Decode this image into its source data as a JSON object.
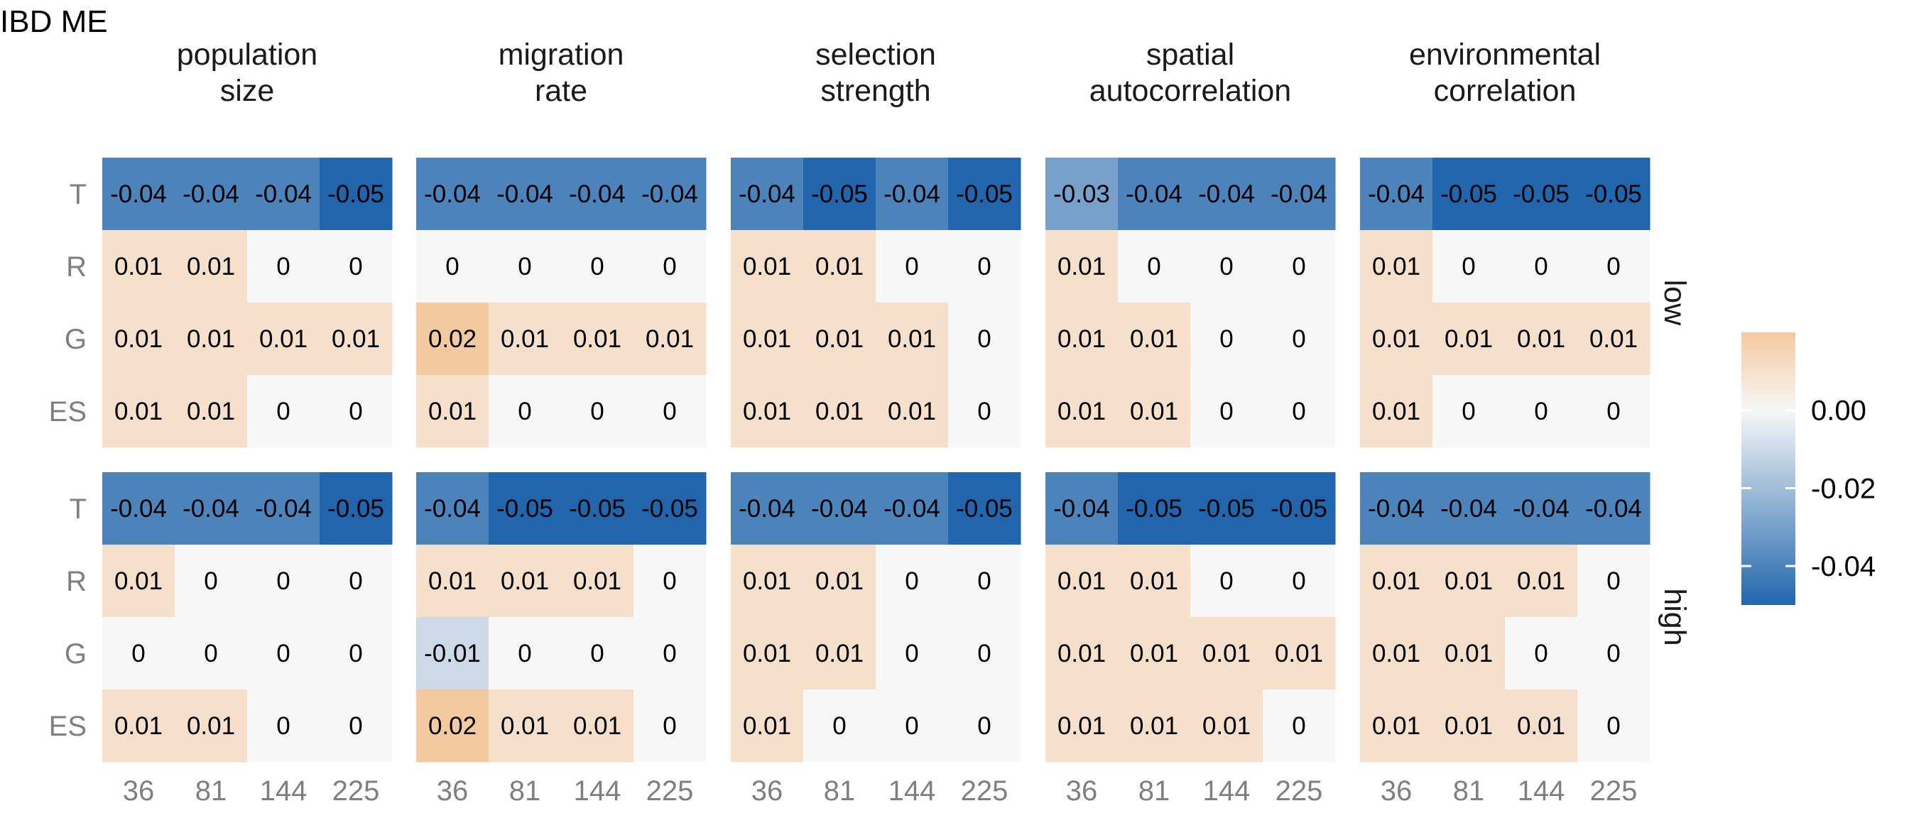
{
  "chart_data": {
    "type": "heatmap",
    "title": "IBD ME",
    "x_ticks": [
      "36",
      "81",
      "144",
      "225"
    ],
    "y_categories": [
      "T",
      "R",
      "G",
      "ES"
    ],
    "columns": [
      "population\nsize",
      "migration\nrate",
      "selection\nstrength",
      "spatial\nautocorrelation",
      "environmental\ncorrelation"
    ],
    "rows": [
      "low",
      "high"
    ],
    "color_scale": {
      "low_color": "#2166ac",
      "mid_color": "#f7f7f7",
      "high_color": "#f4c9a0",
      "domain": [
        -0.05,
        0.0,
        0.02
      ],
      "legend_ticks": [
        0.0,
        -0.02,
        -0.04
      ],
      "legend_labels": [
        "0.00",
        "-0.02",
        "-0.04"
      ]
    },
    "panels": [
      {
        "row": "low",
        "column": 0,
        "values": [
          [
            "-0.04",
            "-0.04",
            "-0.04",
            "-0.05"
          ],
          [
            "0.01",
            "0.01",
            "0",
            "0"
          ],
          [
            "0.01",
            "0.01",
            "0.01",
            "0.01"
          ],
          [
            "0.01",
            "0.01",
            "0",
            "0"
          ]
        ]
      },
      {
        "row": "low",
        "column": 1,
        "values": [
          [
            "-0.04",
            "-0.04",
            "-0.04",
            "-0.04"
          ],
          [
            "0",
            "0",
            "0",
            "0"
          ],
          [
            "0.02",
            "0.01",
            "0.01",
            "0.01"
          ],
          [
            "0.01",
            "0",
            "0",
            "0"
          ]
        ]
      },
      {
        "row": "low",
        "column": 2,
        "values": [
          [
            "-0.04",
            "-0.05",
            "-0.04",
            "-0.05"
          ],
          [
            "0.01",
            "0.01",
            "0",
            "0"
          ],
          [
            "0.01",
            "0.01",
            "0.01",
            "0"
          ],
          [
            "0.01",
            "0.01",
            "0.01",
            "0"
          ]
        ]
      },
      {
        "row": "low",
        "column": 3,
        "values": [
          [
            "-0.03",
            "-0.04",
            "-0.04",
            "-0.04"
          ],
          [
            "0.01",
            "0",
            "0",
            "0"
          ],
          [
            "0.01",
            "0.01",
            "0",
            "0"
          ],
          [
            "0.01",
            "0.01",
            "0",
            "0"
          ]
        ]
      },
      {
        "row": "low",
        "column": 4,
        "values": [
          [
            "-0.04",
            "-0.05",
            "-0.05",
            "-0.05"
          ],
          [
            "0.01",
            "0",
            "0",
            "0"
          ],
          [
            "0.01",
            "0.01",
            "0.01",
            "0.01"
          ],
          [
            "0.01",
            "0",
            "0",
            "0"
          ]
        ]
      },
      {
        "row": "high",
        "column": 0,
        "values": [
          [
            "-0.04",
            "-0.04",
            "-0.04",
            "-0.05"
          ],
          [
            "0.01",
            "0",
            "0",
            "0"
          ],
          [
            "0",
            "0",
            "0",
            "0"
          ],
          [
            "0.01",
            "0.01",
            "0",
            "0"
          ]
        ]
      },
      {
        "row": "high",
        "column": 1,
        "values": [
          [
            "-0.04",
            "-0.05",
            "-0.05",
            "-0.05"
          ],
          [
            "0.01",
            "0.01",
            "0.01",
            "0"
          ],
          [
            "-0.01",
            "0",
            "0",
            "0"
          ],
          [
            "0.02",
            "0.01",
            "0.01",
            "0"
          ]
        ]
      },
      {
        "row": "high",
        "column": 2,
        "values": [
          [
            "-0.04",
            "-0.04",
            "-0.04",
            "-0.05"
          ],
          [
            "0.01",
            "0.01",
            "0",
            "0"
          ],
          [
            "0.01",
            "0.01",
            "0",
            "0"
          ],
          [
            "0.01",
            "0",
            "0",
            "0"
          ]
        ]
      },
      {
        "row": "high",
        "column": 3,
        "values": [
          [
            "-0.04",
            "-0.05",
            "-0.05",
            "-0.05"
          ],
          [
            "0.01",
            "0.01",
            "0",
            "0"
          ],
          [
            "0.01",
            "0.01",
            "0.01",
            "0.01"
          ],
          [
            "0.01",
            "0.01",
            "0.01",
            "0"
          ]
        ]
      },
      {
        "row": "high",
        "column": 4,
        "values": [
          [
            "-0.04",
            "-0.04",
            "-0.04",
            "-0.04"
          ],
          [
            "0.01",
            "0.01",
            "0.01",
            "0"
          ],
          [
            "0.01",
            "0.01",
            "0",
            "0"
          ],
          [
            "0.01",
            "0.01",
            "0.01",
            "0"
          ]
        ]
      }
    ]
  }
}
